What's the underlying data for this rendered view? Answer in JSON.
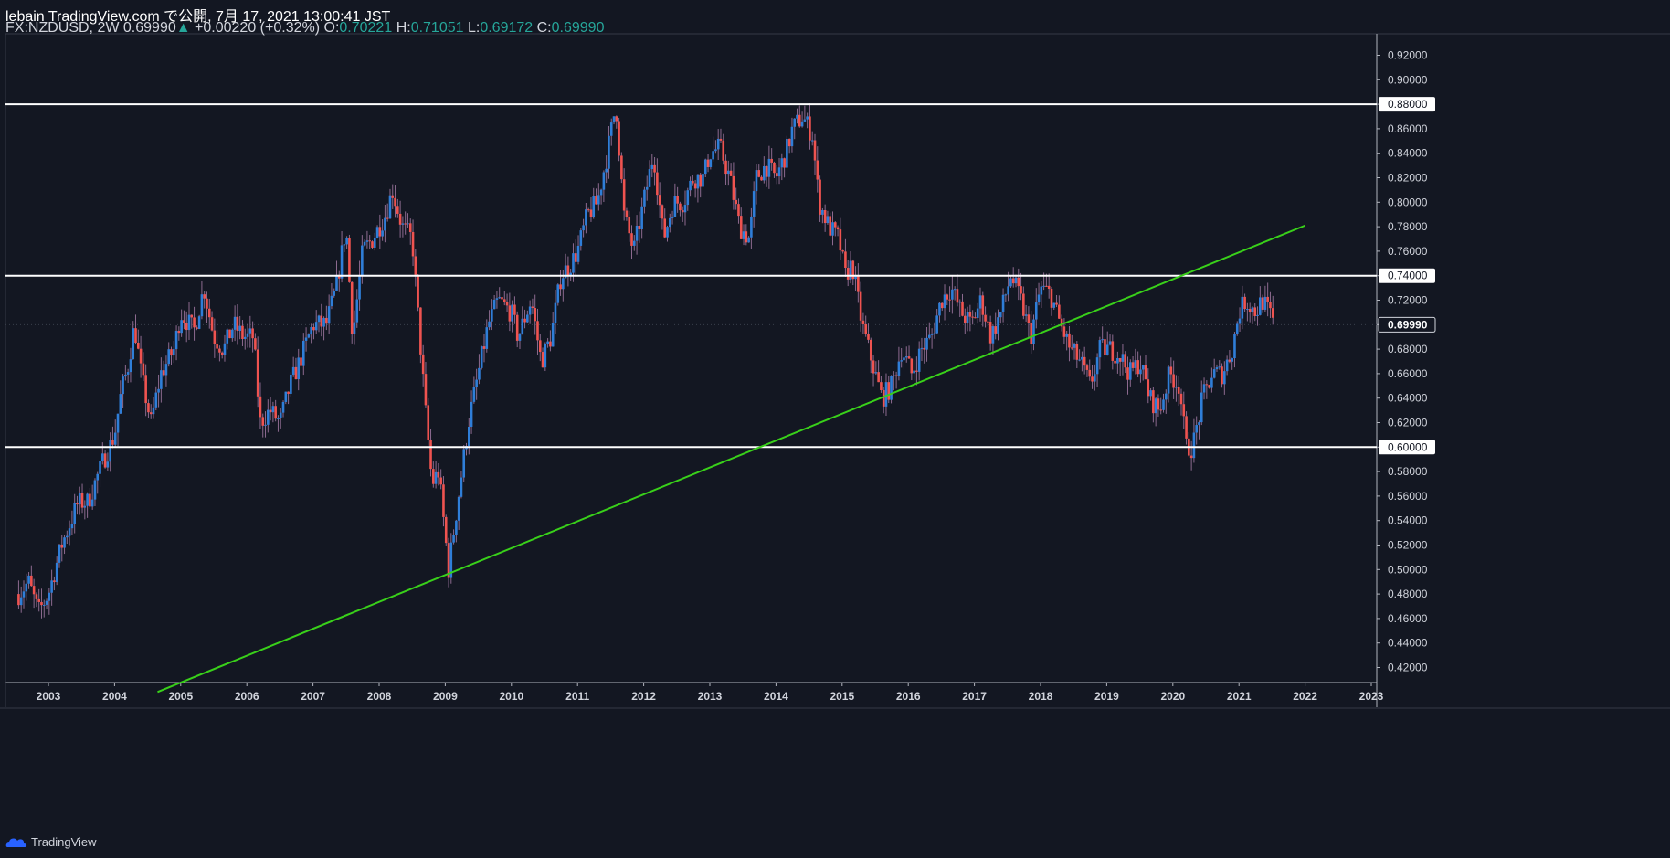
{
  "header": {
    "published": "lebain TradingView.com で公開, 7月 17, 2021 13:00:41 JST",
    "symbol": "FX:NZDUSD, 2W",
    "last": "0.69990",
    "change_arrow": "▲",
    "change": "+0.00220 (+0.32%)",
    "o_label": "O:",
    "o_value": "0.70221",
    "h_label": "H:",
    "h_value": "0.71051",
    "l_label": "L:",
    "l_value": "0.69172",
    "c_label": "C:",
    "c_value": "0.69990"
  },
  "footer": {
    "brand": "TradingView"
  },
  "colors": {
    "background": "#131722",
    "up": "#2f7ed8",
    "down": "#ef5350",
    "grid": "#2a2e39",
    "trendline": "#39d01a",
    "hline": "#ffffff",
    "ohlc_value": "#26a69a"
  },
  "chart_data": {
    "type": "candlestick",
    "symbol": "FX:NZDUSD",
    "interval": "2W",
    "x_range": [
      2002.5,
      2023.0
    ],
    "y_range": [
      0.41,
      0.93
    ],
    "y_ticks": [
      "0.42000",
      "0.44000",
      "0.46000",
      "0.48000",
      "0.50000",
      "0.52000",
      "0.54000",
      "0.56000",
      "0.58000",
      "0.60000",
      "0.62000",
      "0.64000",
      "0.66000",
      "0.68000",
      "0.70000",
      "0.72000",
      "0.74000",
      "0.76000",
      "0.78000",
      "0.80000",
      "0.82000",
      "0.84000",
      "0.86000",
      "0.88000",
      "0.90000",
      "0.92000"
    ],
    "x_ticks": [
      "2003",
      "2004",
      "2005",
      "2006",
      "2007",
      "2008",
      "2009",
      "2010",
      "2011",
      "2012",
      "2013",
      "2014",
      "2015",
      "2016",
      "2017",
      "2018",
      "2019",
      "2020",
      "2021",
      "2022",
      "2023"
    ],
    "horizontal_lines": [
      {
        "value": 0.88,
        "label": "0.88000"
      },
      {
        "value": 0.74,
        "label": "0.74000"
      },
      {
        "value": 0.6,
        "label": "0.60000"
      }
    ],
    "trendline": {
      "from": [
        2004.65,
        0.4
      ],
      "to": [
        2022.0,
        0.781
      ]
    },
    "last_price": {
      "value": 0.6999,
      "label": "0.69990"
    },
    "price_path": [
      [
        2002.55,
        0.48
      ],
      [
        2002.7,
        0.49
      ],
      [
        2002.85,
        0.465
      ],
      [
        2003.0,
        0.48
      ],
      [
        2003.2,
        0.52
      ],
      [
        2003.45,
        0.555
      ],
      [
        2003.6,
        0.555
      ],
      [
        2003.8,
        0.585
      ],
      [
        2004.0,
        0.61
      ],
      [
        2004.1,
        0.645
      ],
      [
        2004.2,
        0.665
      ],
      [
        2004.3,
        0.7
      ],
      [
        2004.4,
        0.66
      ],
      [
        2004.55,
        0.62
      ],
      [
        2004.7,
        0.66
      ],
      [
        2004.9,
        0.68
      ],
      [
        2005.0,
        0.71
      ],
      [
        2005.2,
        0.695
      ],
      [
        2005.35,
        0.73
      ],
      [
        2005.5,
        0.69
      ],
      [
        2005.65,
        0.68
      ],
      [
        2005.8,
        0.7
      ],
      [
        2005.95,
        0.69
      ],
      [
        2006.1,
        0.69
      ],
      [
        2006.2,
        0.62
      ],
      [
        2006.35,
        0.63
      ],
      [
        2006.5,
        0.62
      ],
      [
        2006.65,
        0.65
      ],
      [
        2006.8,
        0.67
      ],
      [
        2007.0,
        0.7
      ],
      [
        2007.2,
        0.7
      ],
      [
        2007.35,
        0.73
      ],
      [
        2007.5,
        0.78
      ],
      [
        2007.6,
        0.69
      ],
      [
        2007.75,
        0.76
      ],
      [
        2007.9,
        0.77
      ],
      [
        2008.1,
        0.79
      ],
      [
        2008.2,
        0.81
      ],
      [
        2008.35,
        0.78
      ],
      [
        2008.5,
        0.77
      ],
      [
        2008.6,
        0.7
      ],
      [
        2008.7,
        0.63
      ],
      [
        2008.8,
        0.57
      ],
      [
        2008.9,
        0.58
      ],
      [
        2009.05,
        0.5
      ],
      [
        2009.2,
        0.56
      ],
      [
        2009.35,
        0.62
      ],
      [
        2009.5,
        0.66
      ],
      [
        2009.65,
        0.7
      ],
      [
        2009.8,
        0.72
      ],
      [
        2010.0,
        0.71
      ],
      [
        2010.1,
        0.69
      ],
      [
        2010.3,
        0.72
      ],
      [
        2010.45,
        0.67
      ],
      [
        2010.6,
        0.69
      ],
      [
        2010.75,
        0.74
      ],
      [
        2010.9,
        0.75
      ],
      [
        2011.0,
        0.76
      ],
      [
        2011.15,
        0.79
      ],
      [
        2011.3,
        0.8
      ],
      [
        2011.45,
        0.84
      ],
      [
        2011.58,
        0.88
      ],
      [
        2011.7,
        0.79
      ],
      [
        2011.85,
        0.76
      ],
      [
        2012.0,
        0.8
      ],
      [
        2012.15,
        0.84
      ],
      [
        2012.3,
        0.77
      ],
      [
        2012.45,
        0.8
      ],
      [
        2012.6,
        0.8
      ],
      [
        2012.75,
        0.82
      ],
      [
        2012.9,
        0.82
      ],
      [
        2013.0,
        0.84
      ],
      [
        2013.15,
        0.845
      ],
      [
        2013.3,
        0.82
      ],
      [
        2013.45,
        0.78
      ],
      [
        2013.6,
        0.77
      ],
      [
        2013.7,
        0.82
      ],
      [
        2013.85,
        0.83
      ],
      [
        2014.0,
        0.82
      ],
      [
        2014.15,
        0.84
      ],
      [
        2014.25,
        0.86
      ],
      [
        2014.4,
        0.87
      ],
      [
        2014.55,
        0.855
      ],
      [
        2014.65,
        0.8
      ],
      [
        2014.8,
        0.78
      ],
      [
        2014.95,
        0.77
      ],
      [
        2015.05,
        0.74
      ],
      [
        2015.15,
        0.75
      ],
      [
        2015.3,
        0.7
      ],
      [
        2015.45,
        0.67
      ],
      [
        2015.6,
        0.64
      ],
      [
        2015.75,
        0.65
      ],
      [
        2015.9,
        0.68
      ],
      [
        2016.05,
        0.66
      ],
      [
        2016.2,
        0.68
      ],
      [
        2016.35,
        0.69
      ],
      [
        2016.5,
        0.72
      ],
      [
        2016.65,
        0.73
      ],
      [
        2016.8,
        0.71
      ],
      [
        2016.95,
        0.7
      ],
      [
        2017.1,
        0.72
      ],
      [
        2017.25,
        0.69
      ],
      [
        2017.4,
        0.71
      ],
      [
        2017.55,
        0.74
      ],
      [
        2017.7,
        0.72
      ],
      [
        2017.85,
        0.69
      ],
      [
        2018.0,
        0.73
      ],
      [
        2018.15,
        0.725
      ],
      [
        2018.3,
        0.7
      ],
      [
        2018.45,
        0.68
      ],
      [
        2018.6,
        0.67
      ],
      [
        2018.75,
        0.65
      ],
      [
        2018.9,
        0.68
      ],
      [
        2019.05,
        0.68
      ],
      [
        2019.2,
        0.675
      ],
      [
        2019.35,
        0.66
      ],
      [
        2019.5,
        0.67
      ],
      [
        2019.65,
        0.64
      ],
      [
        2019.8,
        0.63
      ],
      [
        2019.95,
        0.66
      ],
      [
        2020.1,
        0.65
      ],
      [
        2020.2,
        0.6
      ],
      [
        2020.3,
        0.6
      ],
      [
        2020.45,
        0.64
      ],
      [
        2020.6,
        0.66
      ],
      [
        2020.75,
        0.66
      ],
      [
        2020.9,
        0.68
      ],
      [
        2021.0,
        0.71
      ],
      [
        2021.1,
        0.72
      ],
      [
        2021.25,
        0.71
      ],
      [
        2021.35,
        0.72
      ],
      [
        2021.45,
        0.71
      ],
      [
        2021.54,
        0.6999
      ]
    ]
  }
}
